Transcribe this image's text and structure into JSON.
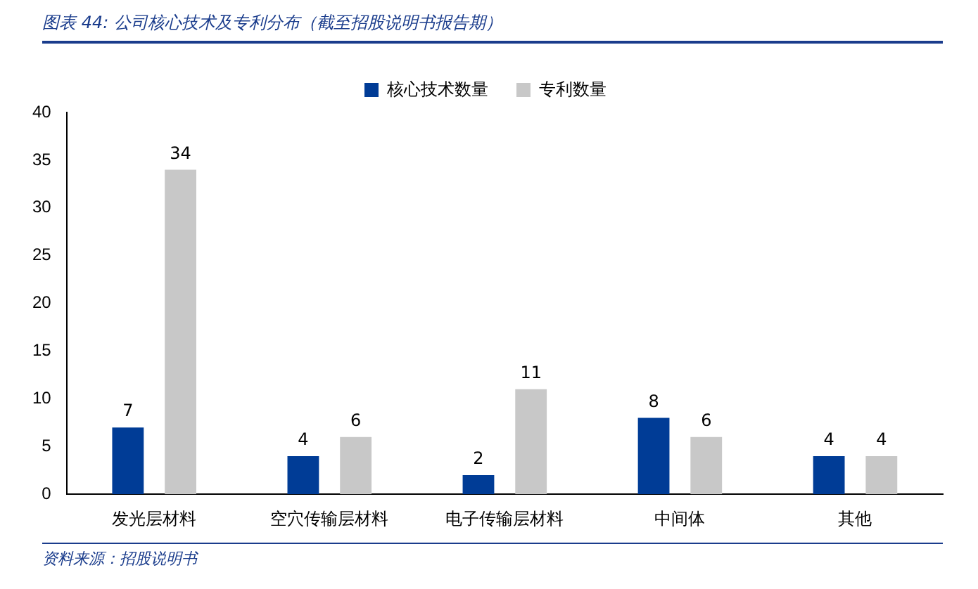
{
  "chart_data": {
    "type": "bar",
    "title": "图表 44: 公司核心技术及专利分布（截至招股说明书报告期）",
    "categories": [
      "发光层材料",
      "空穴传输层材料",
      "电子传输层材料",
      "中间体",
      "其他"
    ],
    "series": [
      {
        "name": "核心技术数量",
        "color": "#003c96",
        "values": [
          7,
          4,
          2,
          8,
          4
        ]
      },
      {
        "name": "专利数量",
        "color": "#c8c8c8",
        "values": [
          34,
          6,
          11,
          6,
          4
        ]
      }
    ],
    "ylim": [
      0,
      40
    ],
    "yticks": [
      0,
      5,
      10,
      15,
      20,
      25,
      30,
      35,
      40
    ],
    "grid": false,
    "legend": "top",
    "data_labels": true,
    "annotations": [
      "资料来源：招股说明书"
    ]
  }
}
